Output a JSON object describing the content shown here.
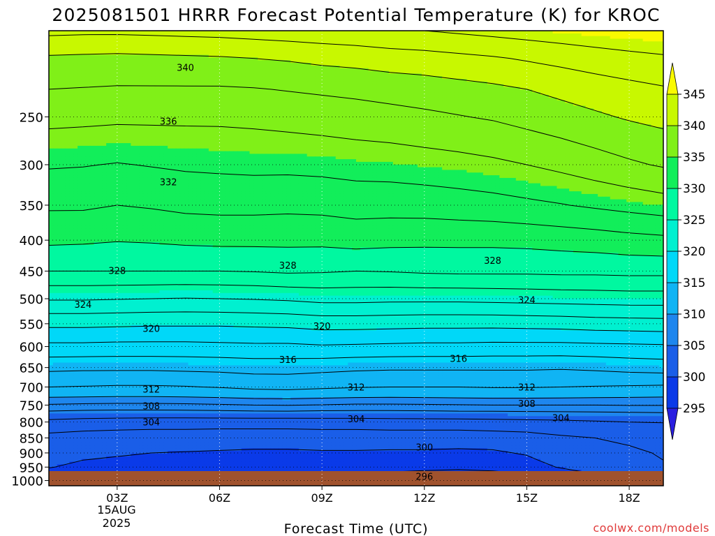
{
  "chart_data": {
    "type": "heatmap",
    "title": "2025081501 HRRR Forecast Potential Temperature (K) for KROC",
    "xlabel": "Forecast Time (UTC)",
    "ylabel": "",
    "credit": "coolwx.com/models",
    "x_range_hours": [
      1,
      19
    ],
    "x_ticks": [
      {
        "hour": 3,
        "label": "03Z"
      },
      {
        "hour": 6,
        "label": "06Z"
      },
      {
        "hour": 9,
        "label": "09Z"
      },
      {
        "hour": 12,
        "label": "12Z"
      },
      {
        "hour": 15,
        "label": "15Z"
      },
      {
        "hour": 18,
        "label": "18Z"
      }
    ],
    "x_date_label": [
      "15AUG",
      "2025"
    ],
    "y_axis": {
      "scale": "log-pressure",
      "range_hPa": [
        1020,
        180
      ],
      "inverted": true
    },
    "y_ticks": [
      1000,
      950,
      900,
      850,
      800,
      750,
      700,
      650,
      600,
      550,
      500,
      450,
      400,
      350,
      300,
      250
    ],
    "colorbar": {
      "levels": [
        295,
        300,
        305,
        310,
        315,
        320,
        325,
        330,
        335,
        340,
        345
      ],
      "colors": [
        "#2a1ee0",
        "#0a3ae8",
        "#1a5ee8",
        "#1e86ee",
        "#10b4f4",
        "#00d8f8",
        "#00f0d0",
        "#00f8a0",
        "#12ee5a",
        "#80f018",
        "#c8f800",
        "#fafa00"
      ],
      "extend": "both"
    },
    "ground_color": "#a0522d",
    "contour_levels": [
      296,
      298,
      300,
      302,
      304,
      306,
      308,
      310,
      312,
      314,
      316,
      318,
      320,
      322,
      324,
      326,
      328,
      330,
      332,
      334,
      336,
      338,
      340,
      342,
      344
    ],
    "forecast_hours": [
      1,
      2,
      3,
      4,
      5,
      6,
      7,
      8,
      9,
      10,
      11,
      12,
      13,
      14,
      15,
      16,
      17,
      18,
      19
    ],
    "pressure_levels_hPa": [
      1000,
      975,
      950,
      925,
      900,
      875,
      850,
      825,
      800,
      775,
      750,
      725,
      700,
      650,
      600,
      550,
      500,
      450,
      400,
      350,
      300,
      250,
      225,
      200,
      180
    ],
    "theta_K": [
      [
        298.5,
        298.5,
        298.2,
        297.8,
        297.5,
        297.4,
        297.3,
        297.3,
        297.4,
        297.2,
        296.8,
        296.5,
        296.4,
        296.5,
        296.8,
        297.5,
        299.0,
        300.5,
        301.5
      ],
      [
        299.3,
        298.8,
        298.5,
        298.3,
        298.2,
        298.0,
        297.9,
        297.9,
        298.0,
        298.0,
        297.8,
        297.6,
        297.5,
        297.6,
        298.0,
        298.7,
        300.0,
        301.2,
        301.7
      ],
      [
        300.1,
        299.5,
        299.2,
        299.0,
        298.8,
        298.6,
        298.5,
        298.5,
        298.6,
        298.6,
        298.5,
        298.4,
        298.3,
        298.5,
        298.9,
        300.2,
        300.9,
        301.5,
        301.9
      ],
      [
        300.4,
        300.0,
        299.8,
        299.6,
        299.4,
        299.2,
        299.1,
        299.1,
        299.2,
        299.2,
        299.1,
        299.0,
        299.0,
        299.1,
        299.6,
        300.8,
        301.3,
        301.7,
        302.0
      ],
      [
        300.6,
        300.4,
        300.2,
        300.0,
        299.9,
        299.8,
        299.7,
        299.7,
        299.8,
        299.8,
        299.7,
        299.7,
        299.6,
        299.7,
        300.2,
        301.2,
        301.5,
        301.8,
        302.1
      ],
      [
        301.0,
        300.8,
        300.7,
        300.6,
        300.5,
        300.4,
        300.3,
        300.3,
        300.4,
        300.4,
        300.4,
        300.4,
        300.3,
        300.4,
        300.7,
        301.4,
        301.7,
        302.0,
        302.3
      ],
      [
        301.5,
        301.3,
        301.2,
        301.1,
        301.0,
        301.0,
        300.9,
        300.9,
        301.0,
        301.0,
        301.1,
        301.1,
        301.1,
        301.2,
        301.4,
        301.8,
        302.0,
        302.3,
        302.5
      ],
      [
        302.3,
        302.1,
        302.0,
        301.9,
        301.9,
        301.8,
        301.8,
        301.8,
        301.9,
        301.9,
        302.0,
        302.0,
        302.0,
        302.1,
        302.2,
        302.4,
        302.6,
        302.8,
        303.0
      ],
      [
        303.5,
        303.3,
        303.2,
        303.1,
        303.1,
        303.1,
        303.1,
        303.1,
        303.2,
        303.2,
        303.3,
        303.3,
        303.3,
        303.4,
        303.5,
        303.6,
        303.8,
        304.0,
        304.1
      ],
      [
        305.2,
        305.0,
        304.9,
        304.9,
        304.9,
        305.0,
        305.1,
        305.1,
        305.0,
        305.0,
        305.0,
        305.1,
        305.2,
        305.2,
        305.3,
        305.4,
        305.5,
        305.6,
        305.7
      ],
      [
        307.8,
        307.6,
        307.5,
        307.5,
        307.6,
        307.8,
        308.0,
        308.1,
        307.9,
        307.7,
        307.7,
        307.8,
        307.9,
        308.0,
        308.0,
        308.0,
        308.0,
        308.1,
        308.1
      ],
      [
        310.3,
        310.2,
        310.1,
        310.1,
        310.2,
        310.4,
        310.7,
        310.8,
        310.6,
        310.4,
        310.3,
        310.4,
        310.5,
        310.6,
        310.6,
        310.5,
        310.4,
        310.3,
        310.2
      ],
      [
        312.0,
        311.9,
        311.8,
        311.8,
        311.9,
        312.1,
        312.4,
        312.5,
        312.3,
        312.1,
        312.0,
        312.0,
        312.0,
        312.1,
        312.1,
        312.0,
        311.9,
        311.8,
        311.7
      ],
      [
        314.5,
        314.4,
        314.4,
        314.4,
        314.5,
        314.6,
        314.8,
        314.8,
        314.6,
        314.4,
        314.3,
        314.3,
        314.3,
        314.3,
        314.3,
        314.2,
        314.4,
        314.7,
        314.9
      ],
      [
        317.5,
        317.5,
        317.4,
        317.4,
        317.4,
        317.5,
        317.6,
        317.6,
        317.8,
        317.7,
        317.6,
        317.5,
        317.5,
        317.4,
        317.4,
        317.4,
        317.5,
        317.6,
        317.7
      ],
      [
        320.5,
        320.5,
        320.4,
        320.3,
        320.3,
        320.3,
        320.4,
        320.5,
        320.8,
        320.8,
        320.7,
        320.6,
        320.6,
        320.6,
        320.7,
        320.8,
        321.0,
        321.1,
        321.2
      ],
      [
        324.2,
        324.2,
        324.1,
        324.0,
        323.9,
        324.0,
        324.1,
        324.3,
        324.6,
        324.6,
        324.5,
        324.5,
        324.5,
        324.6,
        324.7,
        324.8,
        324.9,
        325.0,
        325.0
      ],
      [
        328.0,
        328.0,
        328.0,
        328.0,
        328.0,
        328.0,
        328.1,
        328.3,
        328.2,
        328.0,
        328.1,
        328.3,
        328.4,
        328.4,
        328.4,
        328.5,
        328.5,
        328.6,
        328.6
      ],
      [
        330.4,
        330.3,
        330.1,
        330.2,
        330.4,
        330.5,
        330.5,
        330.5,
        330.5,
        330.8,
        330.6,
        330.5,
        330.5,
        330.5,
        330.6,
        330.8,
        331.0,
        331.3,
        331.5
      ],
      [
        332.3,
        332.3,
        332.0,
        332.2,
        332.5,
        332.6,
        332.6,
        332.5,
        332.6,
        332.8,
        332.8,
        332.9,
        333.1,
        333.3,
        333.6,
        333.9,
        334.3,
        334.7,
        335.1
      ],
      [
        334.2,
        334.1,
        333.9,
        334.1,
        334.3,
        334.4,
        334.5,
        334.5,
        334.6,
        334.8,
        334.9,
        335.1,
        335.3,
        335.6,
        336.0,
        336.5,
        337.1,
        337.7,
        338.2
      ],
      [
        336.6,
        336.5,
        336.4,
        336.4,
        336.4,
        336.4,
        336.5,
        336.7,
        336.9,
        337.1,
        337.3,
        337.6,
        337.9,
        338.2,
        338.7,
        339.2,
        339.7,
        340.2,
        340.6
      ],
      [
        338.0,
        337.9,
        337.8,
        337.8,
        337.8,
        337.8,
        337.9,
        338.1,
        338.3,
        338.5,
        338.8,
        339.0,
        339.3,
        339.6,
        340.0,
        340.5,
        341.0,
        341.4,
        341.8
      ],
      [
        339.7,
        339.6,
        339.5,
        339.6,
        339.7,
        339.8,
        340.0,
        340.2,
        340.5,
        340.7,
        341.0,
        341.2,
        341.5,
        341.8,
        342.2,
        342.6,
        343.0,
        343.4,
        343.7
      ],
      [
        342.5,
        342.4,
        342.4,
        342.5,
        342.6,
        342.7,
        342.9,
        343.1,
        343.3,
        343.5,
        343.8,
        344.0,
        344.3,
        344.6,
        344.9,
        345.2,
        345.5,
        345.7,
        345.9
      ]
    ],
    "contour_labels": [
      {
        "value": "340",
        "hour": 5.0,
        "p": 207
      },
      {
        "value": "336",
        "hour": 4.5,
        "p": 254
      },
      {
        "value": "332",
        "hour": 4.5,
        "p": 320
      },
      {
        "value": "328",
        "hour": 3.0,
        "p": 449
      },
      {
        "value": "328",
        "hour": 8.0,
        "p": 440
      },
      {
        "value": "328",
        "hour": 14.0,
        "p": 432
      },
      {
        "value": "324",
        "hour": 2.0,
        "p": 511
      },
      {
        "value": "324",
        "hour": 15.0,
        "p": 502
      },
      {
        "value": "320",
        "hour": 4.0,
        "p": 560
      },
      {
        "value": "320",
        "hour": 9.0,
        "p": 555
      },
      {
        "value": "316",
        "hour": 8.0,
        "p": 630
      },
      {
        "value": "316",
        "hour": 13.0,
        "p": 628
      },
      {
        "value": "312",
        "hour": 4.0,
        "p": 706
      },
      {
        "value": "312",
        "hour": 10.0,
        "p": 700
      },
      {
        "value": "312",
        "hour": 15.0,
        "p": 700
      },
      {
        "value": "308",
        "hour": 4.0,
        "p": 752
      },
      {
        "value": "308",
        "hour": 15.0,
        "p": 745
      },
      {
        "value": "304",
        "hour": 4.0,
        "p": 800
      },
      {
        "value": "304",
        "hour": 10.0,
        "p": 790
      },
      {
        "value": "304",
        "hour": 16.0,
        "p": 787
      },
      {
        "value": "300",
        "hour": 12.0,
        "p": 880
      },
      {
        "value": "296",
        "hour": 12.0,
        "p": 984
      }
    ]
  }
}
